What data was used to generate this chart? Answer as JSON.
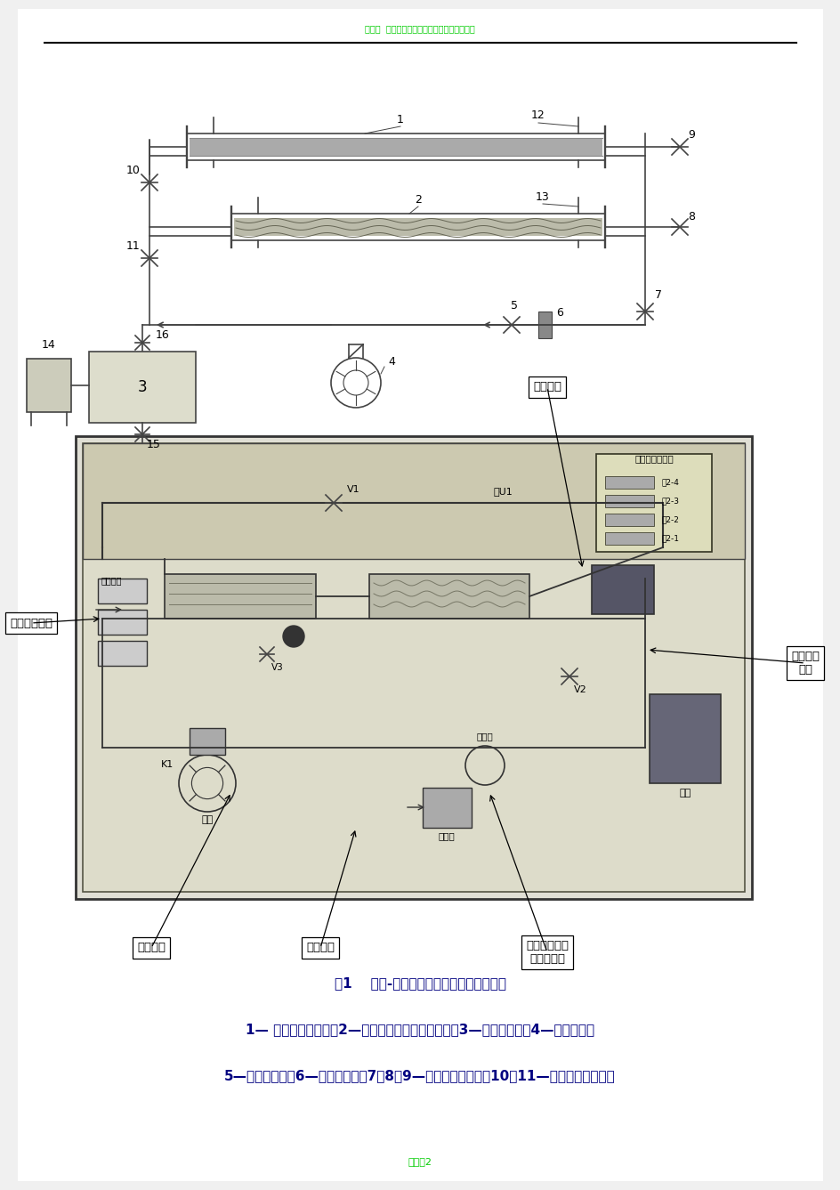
{
  "page_bg": "#f0f0f0",
  "content_bg": "#ffffff",
  "header_text": "一年机  环境通过流传给力教务化环境生产通报",
  "header_color": "#00cc00",
  "header_fontsize": 7,
  "page_number_text": "页码共2",
  "page_number_color": "#00cc00",
  "page_number_fontsize": 8,
  "caption_line1": "图1    空气-水蒸气传热综合实验装置流程图",
  "caption_line2": "1— 光滑套管换热器；2—螺纹管的强化套管换热器；3—蒸汽发生器；4—旋涡气泵；",
  "caption_line3": "5—旁路调节阀；6—孔板流量计；7、8、9—空气支路控制阀；10、11—蒸汽支路控制阀；",
  "caption_color": "#000080",
  "caption_fontsize": 11
}
